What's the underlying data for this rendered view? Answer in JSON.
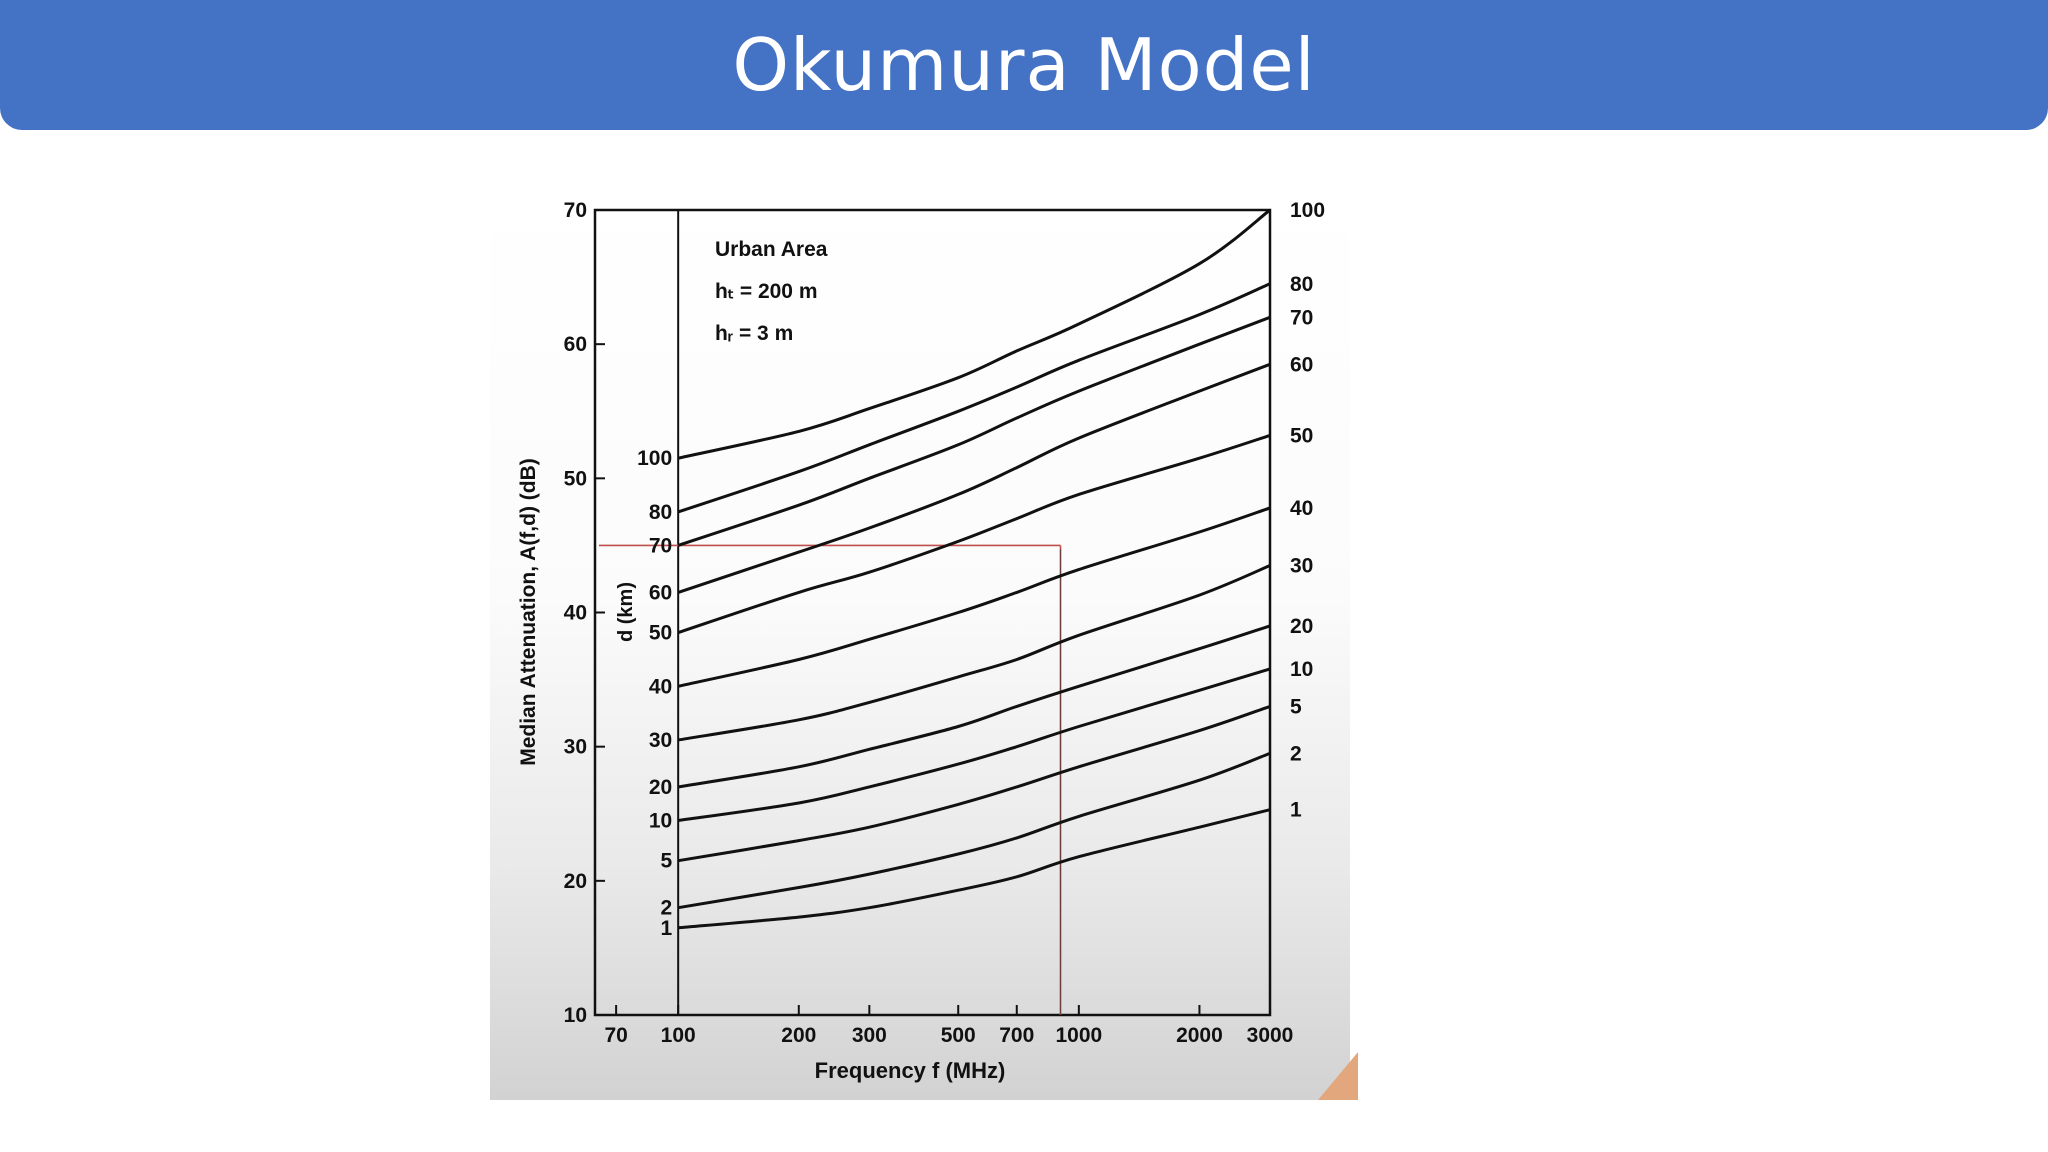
{
  "slide": {
    "title": "Okumura Model"
  },
  "colors": {
    "title_bar": "#4472c4",
    "curve": "#111111",
    "marker_line": "#c0504d"
  },
  "chart_data": {
    "type": "line",
    "title": "",
    "xlabel": "Frequency  f  (MHz)",
    "ylabel": "Median Attenuation, A(f,d) (dB)",
    "x_scale": "log",
    "xlim": [
      62,
      3000
    ],
    "ylim": [
      10,
      70
    ],
    "x_ticks": [
      70,
      100,
      200,
      300,
      500,
      700,
      1000,
      2000,
      3000
    ],
    "y_ticks": [
      10,
      20,
      30,
      40,
      50,
      60,
      70
    ],
    "annotation": {
      "line1": "Urban Area",
      "line2": "hₜ  =  200  m",
      "line3": "hᵣ  =  3  m"
    },
    "series_axis_label": "d (km)",
    "series": [
      {
        "name": "100",
        "x": [
          100,
          200,
          300,
          500,
          700,
          1000,
          2000,
          3000
        ],
        "y": [
          51.5,
          53.5,
          55.2,
          57.5,
          59.5,
          61.5,
          66.0,
          70.0
        ]
      },
      {
        "name": "80",
        "x": [
          100,
          200,
          300,
          500,
          700,
          1000,
          2000,
          3000
        ],
        "y": [
          47.5,
          50.5,
          52.5,
          55.0,
          56.8,
          58.8,
          62.2,
          64.5
        ]
      },
      {
        "name": "70",
        "x": [
          100,
          200,
          300,
          500,
          700,
          1000,
          2000,
          3000
        ],
        "y": [
          45.0,
          48.0,
          50.0,
          52.5,
          54.5,
          56.5,
          60.0,
          62.0
        ]
      },
      {
        "name": "60",
        "x": [
          100,
          200,
          300,
          500,
          700,
          1000,
          2000,
          3000
        ],
        "y": [
          41.5,
          44.5,
          46.3,
          48.8,
          50.8,
          53.0,
          56.5,
          58.5
        ]
      },
      {
        "name": "50",
        "x": [
          100,
          200,
          300,
          500,
          700,
          1000,
          2000,
          3000
        ],
        "y": [
          38.5,
          41.5,
          43.0,
          45.3,
          47.0,
          48.8,
          51.5,
          53.2
        ]
      },
      {
        "name": "40",
        "x": [
          100,
          200,
          300,
          500,
          700,
          1000,
          2000,
          3000
        ],
        "y": [
          34.5,
          36.5,
          38.0,
          40.0,
          41.5,
          43.2,
          46.0,
          47.8
        ]
      },
      {
        "name": "30",
        "x": [
          100,
          200,
          300,
          500,
          700,
          1000,
          2000,
          3000
        ],
        "y": [
          30.5,
          32.0,
          33.3,
          35.2,
          36.5,
          38.3,
          41.3,
          43.5
        ]
      },
      {
        "name": "20",
        "x": [
          100,
          200,
          300,
          500,
          700,
          1000,
          2000,
          3000
        ],
        "y": [
          27.0,
          28.5,
          29.8,
          31.5,
          33.0,
          34.5,
          37.3,
          39.0
        ]
      },
      {
        "name": "10",
        "x": [
          100,
          200,
          300,
          500,
          700,
          1000,
          2000,
          3000
        ],
        "y": [
          24.5,
          25.8,
          27.0,
          28.7,
          30.0,
          31.5,
          34.2,
          35.8
        ]
      },
      {
        "name": "5",
        "x": [
          100,
          200,
          300,
          500,
          700,
          1000,
          2000,
          3000
        ],
        "y": [
          21.5,
          23.0,
          24.0,
          25.7,
          27.0,
          28.5,
          31.2,
          33.0
        ]
      },
      {
        "name": "2",
        "x": [
          100,
          200,
          300,
          500,
          700,
          1000,
          2000,
          3000
        ],
        "y": [
          18.0,
          19.5,
          20.5,
          22.0,
          23.2,
          24.8,
          27.5,
          29.5
        ]
      },
      {
        "name": "1",
        "x": [
          100,
          200,
          300,
          500,
          700,
          1000,
          2000,
          3000
        ],
        "y": [
          16.5,
          17.3,
          18.0,
          19.3,
          20.3,
          21.8,
          24.0,
          25.3
        ]
      }
    ],
    "reference_lines": {
      "frequency_mhz": 900,
      "attenuation_db": 45.0
    },
    "grid": false,
    "legend": "none"
  }
}
